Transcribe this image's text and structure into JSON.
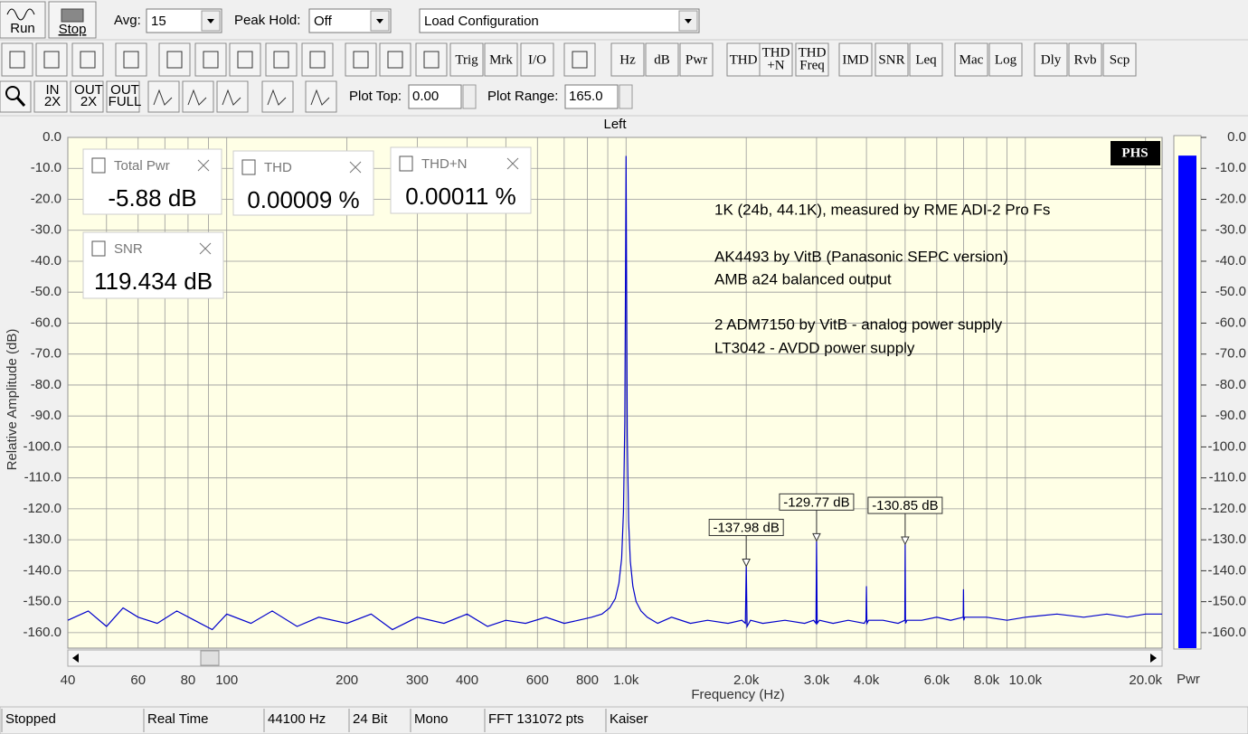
{
  "toolbar": {
    "run": "Run",
    "stop": "Stop",
    "avg_label": "Avg:",
    "avg_value": "15",
    "peak_hold_label": "Peak Hold:",
    "peak_hold_value": "Off",
    "config": "Load Configuration",
    "buttons": [
      [
        "Trig"
      ],
      [
        "Mrk"
      ],
      [
        "I/O"
      ],
      [
        "Hz"
      ],
      [
        "dB"
      ],
      [
        "Pwr"
      ],
      [
        "THD"
      ],
      [
        "THD",
        "+N"
      ],
      [
        "THD",
        "Freq"
      ],
      [
        "IMD"
      ],
      [
        "SNR"
      ],
      [
        "Leq"
      ],
      [
        "Mac"
      ],
      [
        "Log"
      ],
      [
        "Dly"
      ],
      [
        "Rvb"
      ],
      [
        "Scp"
      ]
    ],
    "zoom_buttons": [
      [
        "IN",
        "2X"
      ],
      [
        "OUT",
        "2X"
      ],
      [
        "OUT",
        "FULL"
      ]
    ],
    "plot_top_label": "Plot Top:",
    "plot_top_value": "0.00",
    "plot_range_label": "Plot Range:",
    "plot_range_value": "165.0"
  },
  "chart_data": {
    "type": "line",
    "title": "Left",
    "x_label": "Frequency (Hz)",
    "y_label": "Relative Amplitude (dB)",
    "x_scale": "log",
    "grid": true,
    "color": "#0000cc",
    "xlim": [
      40,
      22000
    ],
    "ylim": [
      -165,
      0
    ],
    "xticks": [
      40,
      60,
      80,
      100,
      200,
      300,
      400,
      600,
      800,
      {
        "value": 1000,
        "label": "1.0k"
      },
      {
        "value": 2000,
        "label": "2.0k"
      },
      {
        "value": 3000,
        "label": "3.0k"
      },
      {
        "value": 4000,
        "label": "4.0k"
      },
      {
        "value": 6000,
        "label": "6.0k"
      },
      {
        "value": 8000,
        "label": "8.0k"
      },
      {
        "value": 10000,
        "label": "10.0k"
      },
      {
        "value": 20000,
        "label": "20.0k"
      }
    ],
    "minor_xticks": [
      50,
      70,
      90,
      500,
      700,
      900,
      5000,
      7000,
      9000
    ],
    "yticks": [
      {
        "value": 0,
        "label": "0.0"
      },
      {
        "value": -10,
        "label": "-10.0"
      },
      {
        "value": -20,
        "label": "-20.0"
      },
      {
        "value": -30,
        "label": "-30.0"
      },
      {
        "value": -40,
        "label": "-40.0"
      },
      {
        "value": -50,
        "label": "-50.0"
      },
      {
        "value": -60,
        "label": "-60.0"
      },
      {
        "value": -70,
        "label": "-70.0"
      },
      {
        "value": -80,
        "label": "-80.0"
      },
      {
        "value": -90,
        "label": "-90.0"
      },
      {
        "value": -100,
        "label": "-100.0"
      },
      {
        "value": -110,
        "label": "-110.0"
      },
      {
        "value": -120,
        "label": "-120.0"
      },
      {
        "value": -130,
        "label": "-130.0"
      },
      {
        "value": -140,
        "label": "-140.0"
      },
      {
        "value": -150,
        "label": "-150.0"
      },
      {
        "value": -160,
        "label": "-160.0"
      }
    ],
    "x": [
      40,
      45,
      50,
      55,
      60,
      67,
      75,
      83,
      92,
      100,
      115,
      130,
      150,
      170,
      200,
      230,
      260,
      300,
      350,
      400,
      450,
      500,
      560,
      630,
      700,
      760,
      820,
      870,
      910,
      940,
      960,
      975,
      985,
      993,
      1000,
      1007,
      1015,
      1025,
      1040,
      1060,
      1090,
      1130,
      1200,
      1300,
      1450,
      1600,
      1800,
      1950,
      1990,
      2000,
      2010,
      2050,
      2200,
      2500,
      2800,
      2950,
      2990,
      3000,
      3010,
      3050,
      3300,
      3600,
      3950,
      3990,
      4000,
      4010,
      4050,
      4400,
      4800,
      4990,
      5000,
      5010,
      5050,
      5500,
      6000,
      6500,
      6990,
      7000,
      7010,
      7050,
      8000,
      9000,
      10000,
      12000,
      14000,
      16000,
      18000,
      20000,
      22000
    ],
    "values": [
      -156,
      -153,
      -158,
      -152,
      -155,
      -157,
      -153,
      -156,
      -159,
      -154,
      -157,
      -153,
      -158,
      -155,
      -157,
      -154,
      -159,
      -155,
      -157,
      -154,
      -158,
      -156,
      -157,
      -155,
      -157,
      -156,
      -155,
      -154,
      -152,
      -149,
      -144,
      -136,
      -121,
      -92,
      -6,
      -96,
      -124,
      -137,
      -145,
      -150,
      -153,
      -155,
      -157,
      -155,
      -157,
      -156,
      -157,
      -156,
      -157,
      -137.98,
      -158,
      -156,
      -157,
      -156,
      -157,
      -156,
      -157,
      -129.77,
      -157,
      -156,
      -157,
      -156,
      -157,
      -156,
      -145,
      -157,
      -156,
      -156,
      -157,
      -156,
      -130.85,
      -157,
      -156,
      -156,
      -155,
      -156,
      -155,
      -146,
      -156,
      -155,
      -155,
      -156,
      -155,
      -154,
      -155,
      -154,
      -155,
      -154,
      -154
    ],
    "markers": [
      {
        "x": 2000,
        "value": -137.98,
        "label": "-137.98 dB"
      },
      {
        "x": 3000,
        "value": -129.77,
        "label": "-129.77 dB"
      },
      {
        "x": 5000,
        "value": -130.85,
        "label": "-130.85 dB"
      }
    ],
    "notes": [
      "1K (24b, 44.1K), measured by RME ADI-2 Pro Fs",
      "AK4493 by VitB (Panasonic SEPC version)",
      "AMB a24 balanced output",
      "2 ADM7150 by VitB - analog power supply",
      "LT3042 - AVDD power supply"
    ],
    "logo": "PHS",
    "meter": {
      "label": "Pwr",
      "value": -5.88,
      "color": "#0000ff"
    }
  },
  "widgets": [
    {
      "title": "Total Pwr",
      "value": "-5.88 dB"
    },
    {
      "title": "THD",
      "value": "0.00009 %"
    },
    {
      "title": "THD+N",
      "value": "0.00011 %"
    },
    {
      "title": "SNR",
      "value": "119.434 dB"
    }
  ],
  "status_bar": [
    "Stopped",
    "Real Time",
    "44100 Hz",
    "24 Bit",
    "Mono",
    "FFT 131072 pts",
    "Kaiser"
  ]
}
